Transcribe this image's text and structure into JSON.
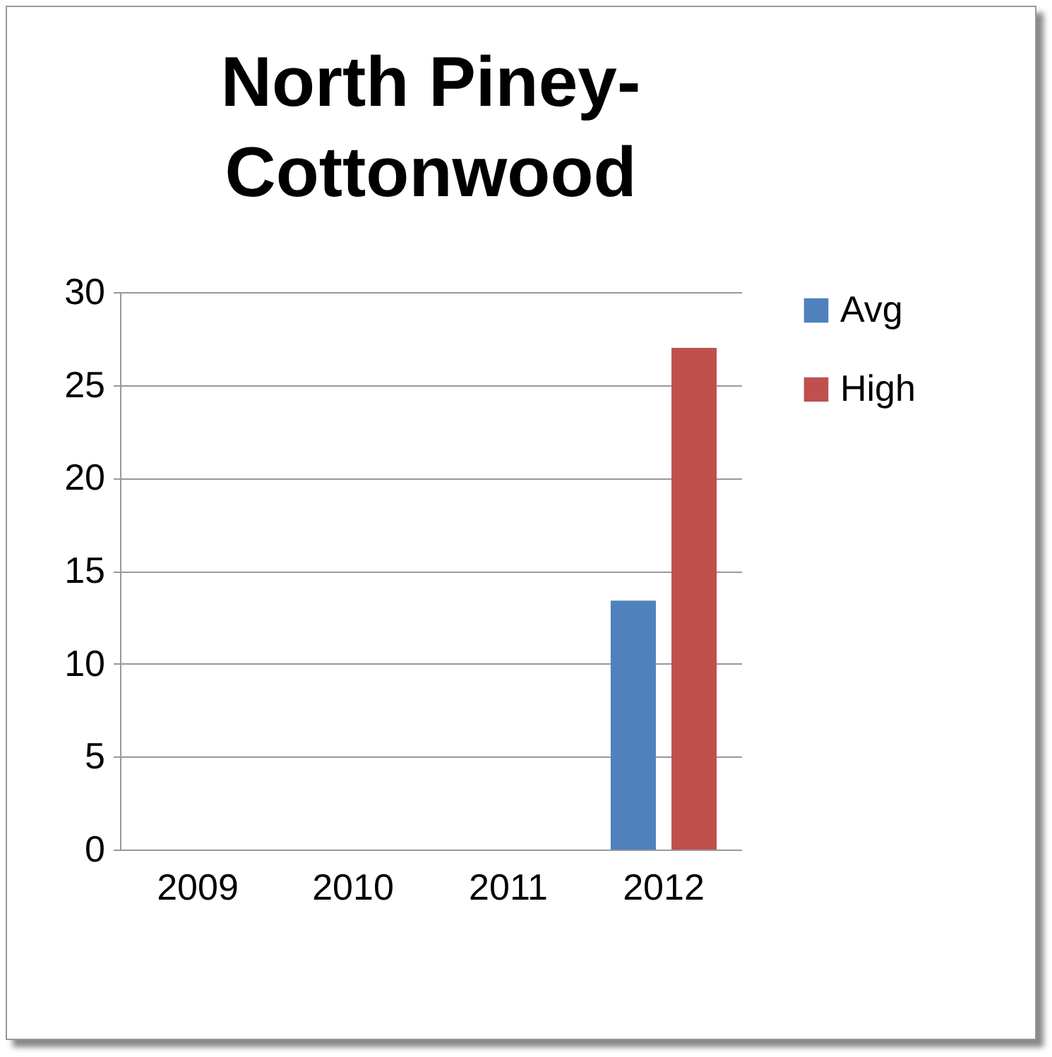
{
  "chart_data": {
    "type": "bar",
    "title": "North Piney-Cottonwood",
    "categories": [
      "2009",
      "2010",
      "2011",
      "2012"
    ],
    "series": [
      {
        "name": "Avg",
        "color": "#4f81bd",
        "values": [
          null,
          null,
          null,
          13.4
        ]
      },
      {
        "name": "High",
        "color": "#c0504d",
        "values": [
          null,
          null,
          null,
          27
        ]
      }
    ],
    "ylim": [
      0,
      30
    ],
    "yticks": [
      0,
      5,
      10,
      15,
      20,
      25,
      30
    ],
    "grid": "y",
    "legend": "right"
  }
}
